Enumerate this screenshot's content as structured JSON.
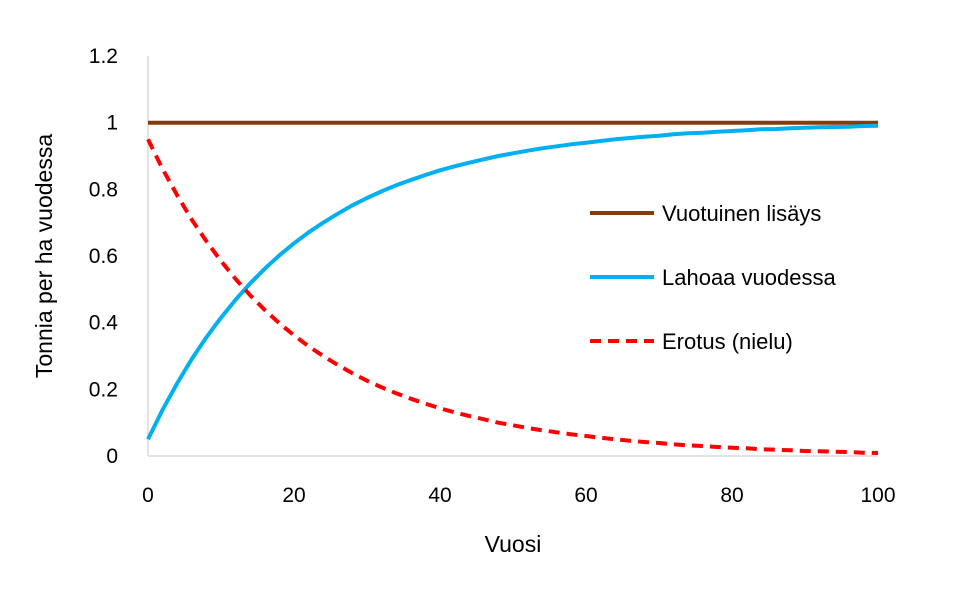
{
  "chart_data": {
    "type": "line",
    "title": "",
    "xlabel": "Vuosi",
    "ylabel": "Tonnia per ha vuodessa",
    "xlim": [
      0,
      100
    ],
    "ylim": [
      0,
      1.2
    ],
    "xticks": [
      "0",
      "20",
      "40",
      "60",
      "80",
      "100"
    ],
    "yticks": [
      "0",
      "0.2",
      "0.4",
      "0.6",
      "0.8",
      "1",
      "1.2"
    ],
    "grid": false,
    "legend_position": "right",
    "x": [
      0,
      2,
      4,
      6,
      8,
      10,
      12,
      14,
      16,
      18,
      20,
      22,
      24,
      26,
      28,
      30,
      32,
      34,
      36,
      38,
      40,
      42,
      44,
      46,
      48,
      50,
      52,
      54,
      56,
      58,
      60,
      62,
      64,
      66,
      68,
      70,
      72,
      74,
      76,
      78,
      80,
      82,
      84,
      86,
      88,
      90,
      92,
      94,
      96,
      98,
      100
    ],
    "series": [
      {
        "name": "Vuotuinen lisäys",
        "color": "#843C0C",
        "dash": "solid",
        "values": [
          1,
          1,
          1,
          1,
          1,
          1,
          1,
          1,
          1,
          1,
          1,
          1,
          1,
          1,
          1,
          1,
          1,
          1,
          1,
          1,
          1,
          1,
          1,
          1,
          1,
          1,
          1,
          1,
          1,
          1,
          1,
          1,
          1,
          1,
          1,
          1,
          1,
          1,
          1,
          1,
          1,
          1,
          1,
          1,
          1,
          1,
          1,
          1,
          1,
          1,
          1
        ]
      },
      {
        "name": "Lahoaa vuodessa",
        "color": "#00B0F0",
        "dash": "solid",
        "values": [
          0.05,
          0.139,
          0.218,
          0.291,
          0.356,
          0.415,
          0.469,
          0.518,
          0.562,
          0.602,
          0.638,
          0.671,
          0.7,
          0.727,
          0.752,
          0.774,
          0.794,
          0.812,
          0.828,
          0.843,
          0.857,
          0.869,
          0.88,
          0.89,
          0.9,
          0.908,
          0.916,
          0.923,
          0.929,
          0.935,
          0.94,
          0.945,
          0.95,
          0.954,
          0.958,
          0.961,
          0.965,
          0.968,
          0.97,
          0.973,
          0.975,
          0.977,
          0.98,
          0.981,
          0.983,
          0.985,
          0.986,
          0.987,
          0.988,
          0.99,
          0.991
        ]
      },
      {
        "name": "Erotus (nielu)",
        "color": "#FF0000",
        "dash": "dashed",
        "values": [
          0.95,
          0.861,
          0.782,
          0.709,
          0.644,
          0.585,
          0.531,
          0.482,
          0.438,
          0.398,
          0.362,
          0.329,
          0.3,
          0.273,
          0.248,
          0.226,
          0.206,
          0.188,
          0.172,
          0.157,
          0.143,
          0.131,
          0.12,
          0.11,
          0.1,
          0.092,
          0.084,
          0.077,
          0.071,
          0.065,
          0.06,
          0.055,
          0.05,
          0.046,
          0.042,
          0.039,
          0.035,
          0.032,
          0.03,
          0.027,
          0.025,
          0.023,
          0.02,
          0.019,
          0.017,
          0.015,
          0.014,
          0.013,
          0.012,
          0.01,
          0.009
        ]
      }
    ]
  }
}
